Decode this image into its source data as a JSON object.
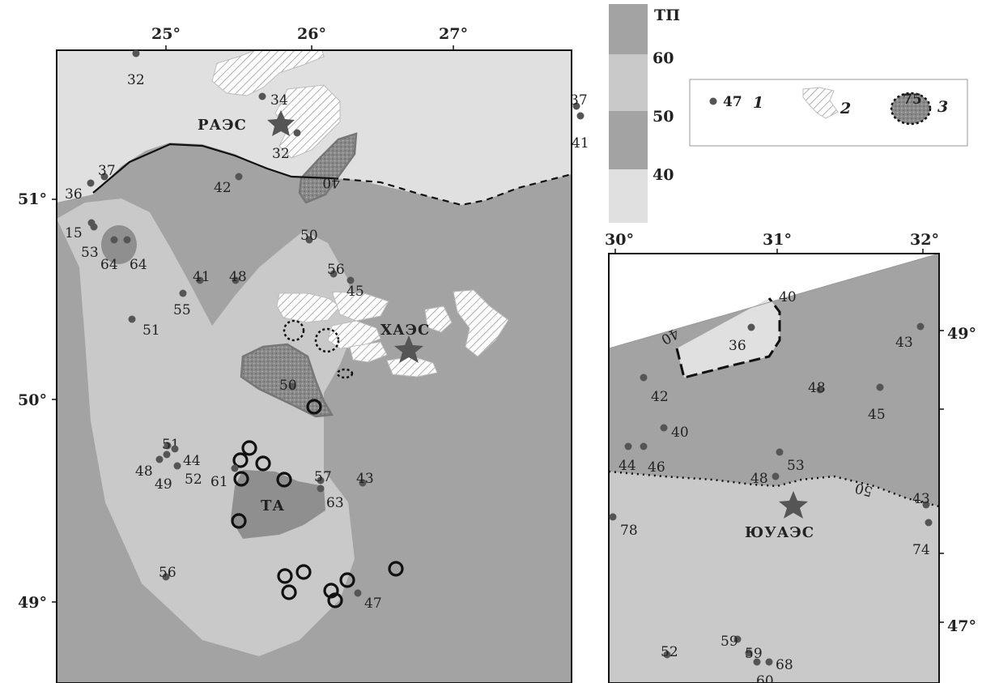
{
  "scale": {
    "title": "ТП",
    "ticks": [
      "60",
      "50",
      "40"
    ],
    "colors": [
      "#a3a3a3",
      "#c9c9c9",
      "#a3a3a3",
      "#e0e0e0"
    ]
  },
  "legend": {
    "item1_value": "47",
    "item1_num": "1",
    "item2_num": "2",
    "item3_value": "75",
    "item3_num": "3"
  },
  "left_map": {
    "lon_labels": [
      "25°",
      "26°",
      "27°"
    ],
    "lat_labels": [
      "51°",
      "50°",
      "49°"
    ],
    "isolines": [
      "40"
    ],
    "stations": [
      {
        "id": "raes",
        "label": "РАЭС"
      },
      {
        "id": "khaes",
        "label": "ХАЭС"
      }
    ],
    "zone_labels": {
      "ta": "ТА"
    },
    "points": [
      {
        "v": "32"
      },
      {
        "v": "34"
      },
      {
        "v": "32"
      },
      {
        "v": "37"
      },
      {
        "v": "41"
      },
      {
        "v": "37"
      },
      {
        "v": "36"
      },
      {
        "v": "42"
      },
      {
        "v": "15"
      },
      {
        "v": "53"
      },
      {
        "v": "64"
      },
      {
        "v": "64"
      },
      {
        "v": "50"
      },
      {
        "v": "56"
      },
      {
        "v": "45"
      },
      {
        "v": "55"
      },
      {
        "v": "41"
      },
      {
        "v": "48"
      },
      {
        "v": "51"
      },
      {
        "v": "50"
      },
      {
        "v": "51"
      },
      {
        "v": "44"
      },
      {
        "v": "48"
      },
      {
        "v": "49"
      },
      {
        "v": "52"
      },
      {
        "v": "61"
      },
      {
        "v": "57"
      },
      {
        "v": "63"
      },
      {
        "v": "43"
      },
      {
        "v": "56"
      },
      {
        "v": "47"
      }
    ]
  },
  "right_map": {
    "lon_labels": [
      "30°",
      "31°",
      "32°"
    ],
    "lat_labels": [
      "49°",
      "47°"
    ],
    "isolines": [
      "40",
      "40",
      "50"
    ],
    "stations": [
      {
        "id": "yuaes",
        "label": "ЮУАЭС"
      }
    ],
    "points": [
      {
        "v": "36"
      },
      {
        "v": "43"
      },
      {
        "v": "42"
      },
      {
        "v": "48"
      },
      {
        "v": "45"
      },
      {
        "v": "40"
      },
      {
        "v": "44"
      },
      {
        "v": "46"
      },
      {
        "v": "53"
      },
      {
        "v": "48"
      },
      {
        "v": "43"
      },
      {
        "v": "78"
      },
      {
        "v": "74"
      },
      {
        "v": "52"
      },
      {
        "v": "59"
      },
      {
        "v": "59"
      },
      {
        "v": "60"
      },
      {
        "v": "68"
      }
    ]
  }
}
